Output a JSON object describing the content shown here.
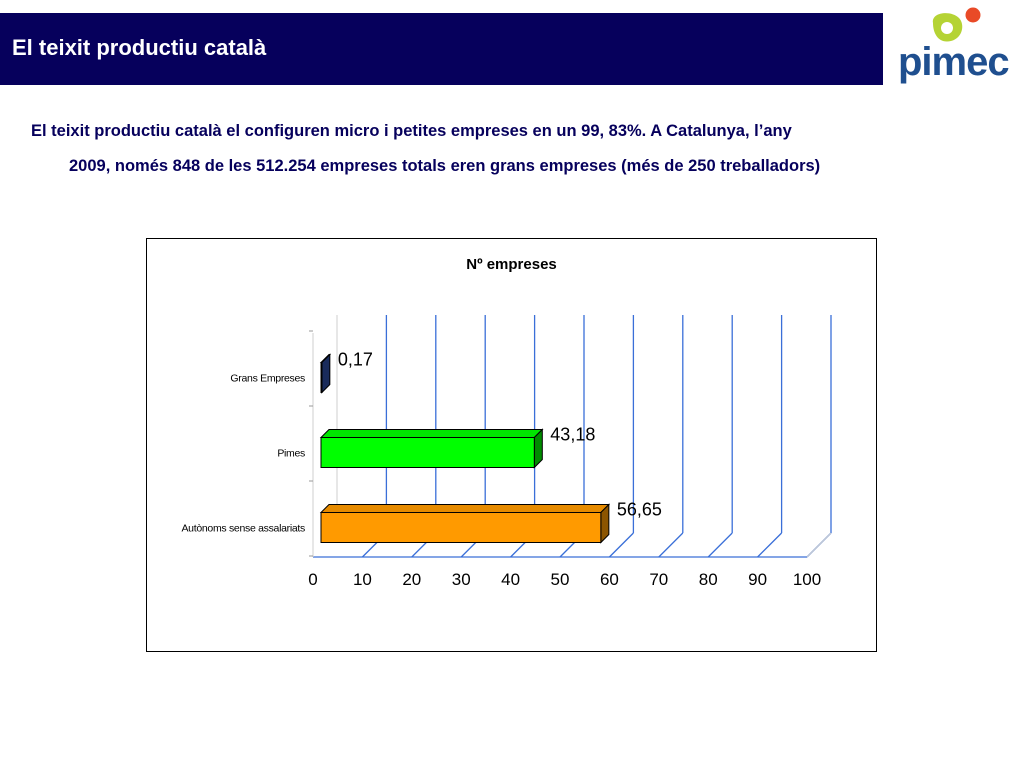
{
  "header": {
    "title": "El teixit productiu català"
  },
  "logo": {
    "text": "pimec",
    "colors": {
      "green": "#b5d334",
      "red": "#e94a27",
      "text": "#1f4f8f"
    }
  },
  "intro": {
    "line1": "El teixit productiu català el configuren micro i petites empreses en un 99, 83%. A Catalunya, l’any",
    "line2": "2009,  només 848 de les 512.254 empreses totals eren grans empreses (més de 250 treballadors)"
  },
  "colors": {
    "header_bg": "#06005c",
    "grid": "#3a6fd8"
  },
  "chart_data": {
    "type": "bar",
    "orientation": "horizontal",
    "three_d": true,
    "title": "Nº empreses",
    "categories": [
      "Grans Empreses",
      "Pimes",
      "Autònoms sense assalariats"
    ],
    "values": [
      0.17,
      43.18,
      56.65
    ],
    "data_labels": [
      "0,17",
      "43,18",
      "56,65"
    ],
    "bar_colors": [
      "#2e4ea6",
      "#00ff00",
      "#ff9a00"
    ],
    "xlim": [
      0,
      100
    ],
    "xticks": [
      "0",
      "10",
      "20",
      "30",
      "40",
      "50",
      "60",
      "70",
      "80",
      "90",
      "100"
    ],
    "grid": true
  }
}
